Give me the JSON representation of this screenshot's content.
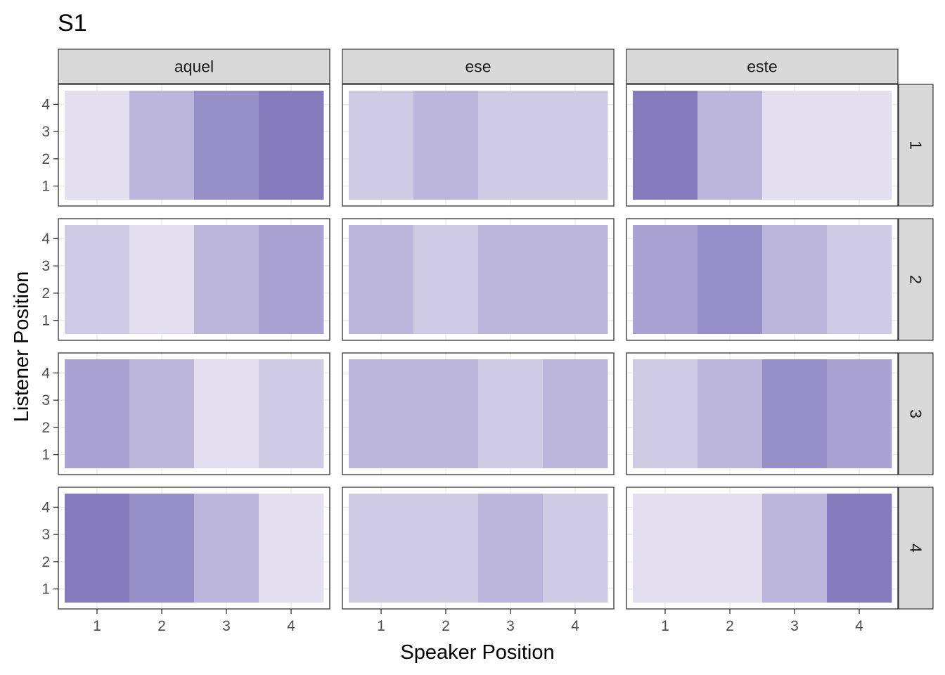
{
  "chart_data": {
    "type": "heatmap",
    "title": "S1",
    "xlabel": "Speaker Position",
    "ylabel": "Listener Position",
    "x_ticks": [
      "1",
      "2",
      "3",
      "4"
    ],
    "y_ticks": [
      "1",
      "2",
      "3",
      "4"
    ],
    "columns": [
      "aquel",
      "ese",
      "este"
    ],
    "rows": [
      "1",
      "2",
      "3",
      "4"
    ],
    "grid": true,
    "legend": "none",
    "fill_colors": [
      "#e3dff0",
      "#d0cbe5",
      "#bdb6dc",
      "#aba2d4",
      "#978fc7",
      "#857bbd"
    ],
    "panels": [
      {
        "column": "aquel",
        "row": "1",
        "levels": [
          0,
          2,
          4,
          5
        ]
      },
      {
        "column": "ese",
        "row": "1",
        "levels": [
          1,
          2,
          1,
          1
        ]
      },
      {
        "column": "este",
        "row": "1",
        "levels": [
          5,
          2,
          0,
          0
        ]
      },
      {
        "column": "aquel",
        "row": "2",
        "levels": [
          1,
          0,
          2,
          3
        ]
      },
      {
        "column": "ese",
        "row": "2",
        "levels": [
          2,
          1,
          2,
          2
        ]
      },
      {
        "column": "este",
        "row": "2",
        "levels": [
          3,
          4,
          2,
          1
        ]
      },
      {
        "column": "aquel",
        "row": "3",
        "levels": [
          3,
          2,
          0,
          1
        ]
      },
      {
        "column": "ese",
        "row": "3",
        "levels": [
          2,
          2,
          1,
          2
        ]
      },
      {
        "column": "este",
        "row": "3",
        "levels": [
          1,
          2,
          4,
          3
        ]
      },
      {
        "column": "aquel",
        "row": "4",
        "levels": [
          5,
          4,
          2,
          0
        ]
      },
      {
        "column": "ese",
        "row": "4",
        "levels": [
          1,
          1,
          2,
          1
        ]
      },
      {
        "column": "este",
        "row": "4",
        "levels": [
          0,
          0,
          2,
          5
        ]
      }
    ]
  }
}
